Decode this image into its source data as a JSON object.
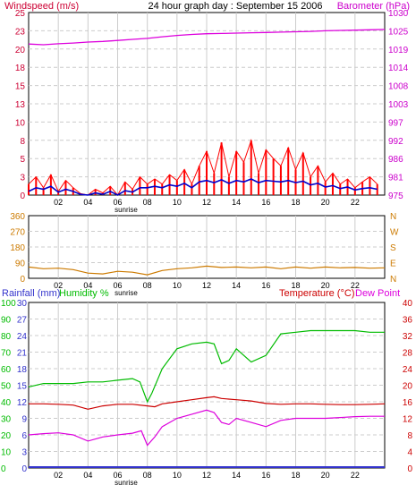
{
  "header": {
    "title": "24 hour graph day : September 15 2006",
    "wind_label": "Windspeed (m/s)",
    "baro_label": "Barometer (hPa)"
  },
  "colors": {
    "wind_gust": "#ff0000",
    "wind_avg": "#0000cc",
    "barometer": "#dd00dd",
    "direction": "#cc7a00",
    "humidity": "#00bb00",
    "temperature": "#cc0000",
    "dew_point": "#dd00dd",
    "rainfall": "#3333cc",
    "header_red": "#cc0033",
    "header_magenta": "#cc00cc",
    "grid": "#cccccc",
    "background": "#ffffff"
  },
  "chart_data": [
    {
      "id": "wind_baro",
      "type": "line",
      "title": "24 hour graph day : September 15 2006",
      "x_ticks": [
        "02",
        "04",
        "06",
        "08",
        "10",
        "12",
        "14",
        "16",
        "18",
        "20",
        "22"
      ],
      "x_range_hours": [
        0,
        24
      ],
      "sunrise_label": "sunrise",
      "sunrise_hour": 6.3,
      "left_axis": {
        "label": "Windspeed (m/s)",
        "ticks": [
          "25",
          "23",
          "20",
          "18",
          "15",
          "13",
          "10",
          "8",
          "5",
          "3",
          "0"
        ],
        "range": [
          0,
          25
        ]
      },
      "right_axis": {
        "label": "Barometer (hPa)",
        "ticks": [
          "1030",
          "1025",
          "1019",
          "1014",
          "1008",
          "1003",
          "997",
          "992",
          "986",
          "981",
          "975"
        ],
        "range": [
          975,
          1030
        ]
      },
      "series": [
        {
          "name": "Barometer",
          "axis": "right",
          "x": [
            0,
            1,
            2,
            3,
            4,
            5,
            6,
            7,
            8,
            9,
            10,
            11,
            12,
            13,
            14,
            15,
            16,
            17,
            18,
            19,
            20,
            21,
            22,
            23,
            24
          ],
          "values": [
            1020.5,
            1020.3,
            1020.6,
            1020.8,
            1021.1,
            1021.3,
            1021.6,
            1021.9,
            1022.2,
            1022.7,
            1023.1,
            1023.4,
            1023.6,
            1023.7,
            1023.8,
            1023.9,
            1024.0,
            1024.1,
            1024.2,
            1024.3,
            1024.5,
            1024.6,
            1024.7,
            1024.8,
            1024.9
          ]
        },
        {
          "name": "Wind gust",
          "axis": "left",
          "x": [
            0,
            0.5,
            1,
            1.5,
            2,
            2.5,
            3,
            3.5,
            4,
            4.5,
            5,
            5.5,
            6,
            6.5,
            7,
            7.5,
            8,
            8.5,
            9,
            9.5,
            10,
            10.5,
            11,
            11.5,
            12,
            12.5,
            13,
            13.5,
            14,
            14.5,
            15,
            15.5,
            16,
            16.5,
            17,
            17.5,
            18,
            18.5,
            19,
            19.5,
            20,
            20.5,
            21,
            21.5,
            22,
            22.5,
            23,
            23.5
          ],
          "values": [
            1.5,
            2.5,
            1.0,
            2.8,
            0.5,
            2.0,
            1.0,
            0.2,
            0.0,
            0.8,
            0.3,
            1.2,
            0.0,
            1.8,
            0.8,
            2.5,
            1.5,
            2.2,
            1.5,
            2.8,
            2.0,
            3.5,
            1.5,
            4.0,
            6.0,
            3.0,
            7.2,
            2.5,
            6.0,
            4.5,
            7.5,
            3.0,
            6.2,
            5.0,
            4.0,
            6.5,
            3.5,
            5.8,
            2.5,
            4.0,
            1.8,
            3.0,
            1.5,
            2.2,
            1.0,
            1.8,
            2.5,
            1.5
          ]
        },
        {
          "name": "Wind average",
          "axis": "left",
          "x": [
            0,
            0.5,
            1,
            1.5,
            2,
            2.5,
            3,
            3.5,
            4,
            4.5,
            5,
            5.5,
            6,
            6.5,
            7,
            7.5,
            8,
            8.5,
            9,
            9.5,
            10,
            10.5,
            11,
            11.5,
            12,
            12.5,
            13,
            13.5,
            14,
            14.5,
            15,
            15.5,
            16,
            16.5,
            17,
            17.5,
            18,
            18.5,
            19,
            19.5,
            20,
            20.5,
            21,
            21.5,
            22,
            22.5,
            23,
            23.5
          ],
          "values": [
            0.5,
            1.0,
            0.8,
            1.2,
            0.4,
            0.8,
            0.5,
            0.1,
            0.0,
            0.3,
            0.1,
            0.5,
            0.0,
            0.6,
            0.4,
            1.0,
            1.0,
            1.2,
            1.0,
            1.4,
            1.2,
            1.6,
            1.0,
            1.8,
            2.0,
            1.7,
            2.1,
            1.6,
            2.0,
            1.8,
            2.2,
            1.7,
            2.0,
            1.9,
            1.8,
            2.0,
            1.7,
            1.9,
            1.4,
            1.6,
            1.1,
            1.3,
            0.9,
            1.1,
            0.7,
            0.9,
            1.0,
            0.8
          ]
        }
      ]
    },
    {
      "id": "direction",
      "type": "line",
      "x_ticks": [
        "02",
        "04",
        "06",
        "08",
        "10",
        "12",
        "14",
        "16",
        "18",
        "20",
        "22"
      ],
      "x_range_hours": [
        0,
        24
      ],
      "sunrise_label": "sunrise",
      "left_axis": {
        "ticks": [
          "360",
          "270",
          "180",
          "90",
          "0"
        ],
        "range": [
          0,
          360
        ]
      },
      "right_axis": {
        "ticks": [
          "N",
          "W",
          "S",
          "E",
          "N"
        ]
      },
      "series": [
        {
          "name": "Wind direction",
          "x": [
            0,
            1,
            2,
            3,
            4,
            5,
            6,
            7,
            8,
            9,
            10,
            11,
            12,
            13,
            14,
            15,
            16,
            17,
            18,
            19,
            20,
            21,
            22,
            23,
            24
          ],
          "values": [
            65,
            55,
            58,
            50,
            30,
            25,
            40,
            35,
            20,
            45,
            55,
            60,
            70,
            62,
            65,
            60,
            65,
            55,
            65,
            58,
            65,
            60,
            62,
            58,
            60
          ]
        }
      ]
    },
    {
      "id": "temp_hum",
      "type": "line",
      "x_ticks": [
        "02",
        "04",
        "06",
        "08",
        "10",
        "12",
        "14",
        "16",
        "18",
        "20",
        "22"
      ],
      "x_range_hours": [
        0,
        24
      ],
      "sunrise_label": "sunrise",
      "rain_label": "Rainfall (mm)",
      "humidity_label": "Humidity %",
      "temperature_label": "Temperature (°C)",
      "dew_label": "Dew Point",
      "humidity_ticks": [
        "100",
        "90",
        "80",
        "70",
        "60",
        "50",
        "40",
        "30",
        "20",
        "10",
        "0"
      ],
      "rain_ticks": [
        "30",
        "27",
        "24",
        "21",
        "18",
        "15",
        "12",
        "9",
        "6",
        "3",
        "0"
      ],
      "temp_ticks": [
        "40",
        "36",
        "32",
        "28",
        "24",
        "20",
        "16",
        "12",
        "8",
        "4",
        "0"
      ],
      "humidity_range": [
        0,
        100
      ],
      "temp_range": [
        0,
        40
      ],
      "series": [
        {
          "name": "Humidity",
          "axis": "humidity",
          "x": [
            0,
            1,
            2,
            3,
            4,
            5,
            6,
            7,
            7.5,
            8,
            8.3,
            9,
            10,
            11,
            12,
            12.5,
            13,
            13.5,
            14,
            15,
            16,
            17,
            18,
            19,
            20,
            21,
            22,
            23,
            24
          ],
          "values": [
            49,
            51,
            51,
            51,
            52,
            52,
            53,
            54,
            52,
            40,
            45,
            60,
            72,
            75,
            76,
            75,
            63,
            65,
            72,
            64,
            68,
            81,
            82,
            83,
            83,
            83,
            83,
            82,
            82
          ]
        },
        {
          "name": "Temperature",
          "axis": "temperature",
          "x": [
            0,
            1,
            2,
            3,
            4,
            5,
            6,
            7,
            8,
            8.5,
            9,
            10,
            11,
            12,
            12.5,
            13,
            14,
            15,
            16,
            17,
            18,
            19,
            20,
            21,
            22,
            23,
            24
          ],
          "values": [
            15.5,
            15.5,
            15.4,
            15.2,
            14.2,
            15.0,
            15.4,
            15.4,
            15.0,
            14.8,
            15.5,
            16.0,
            16.5,
            17.0,
            17.2,
            16.8,
            16.5,
            16.2,
            15.6,
            15.4,
            15.5,
            15.5,
            15.4,
            15.3,
            15.3,
            15.4,
            15.5
          ]
        },
        {
          "name": "Dew Point",
          "axis": "temperature",
          "x": [
            0,
            1,
            2,
            3,
            4,
            5,
            6,
            7,
            7.6,
            8,
            8.5,
            9,
            10,
            11,
            12,
            12.5,
            13,
            13.5,
            14,
            15,
            16,
            17,
            18,
            19,
            20,
            21,
            22,
            23,
            24
          ],
          "values": [
            8.0,
            8.3,
            8.5,
            8.0,
            6.5,
            7.5,
            8.0,
            8.4,
            9.0,
            5.5,
            7.5,
            10.0,
            12.0,
            13.0,
            14.0,
            13.4,
            11.0,
            10.5,
            12.0,
            11.0,
            10.0,
            11.5,
            12.0,
            12.0,
            12.0,
            12.2,
            12.4,
            12.5,
            12.5
          ]
        },
        {
          "name": "Rainfall",
          "axis": "rainfall",
          "x": [
            0,
            24
          ],
          "values": [
            0,
            0
          ]
        }
      ]
    }
  ]
}
